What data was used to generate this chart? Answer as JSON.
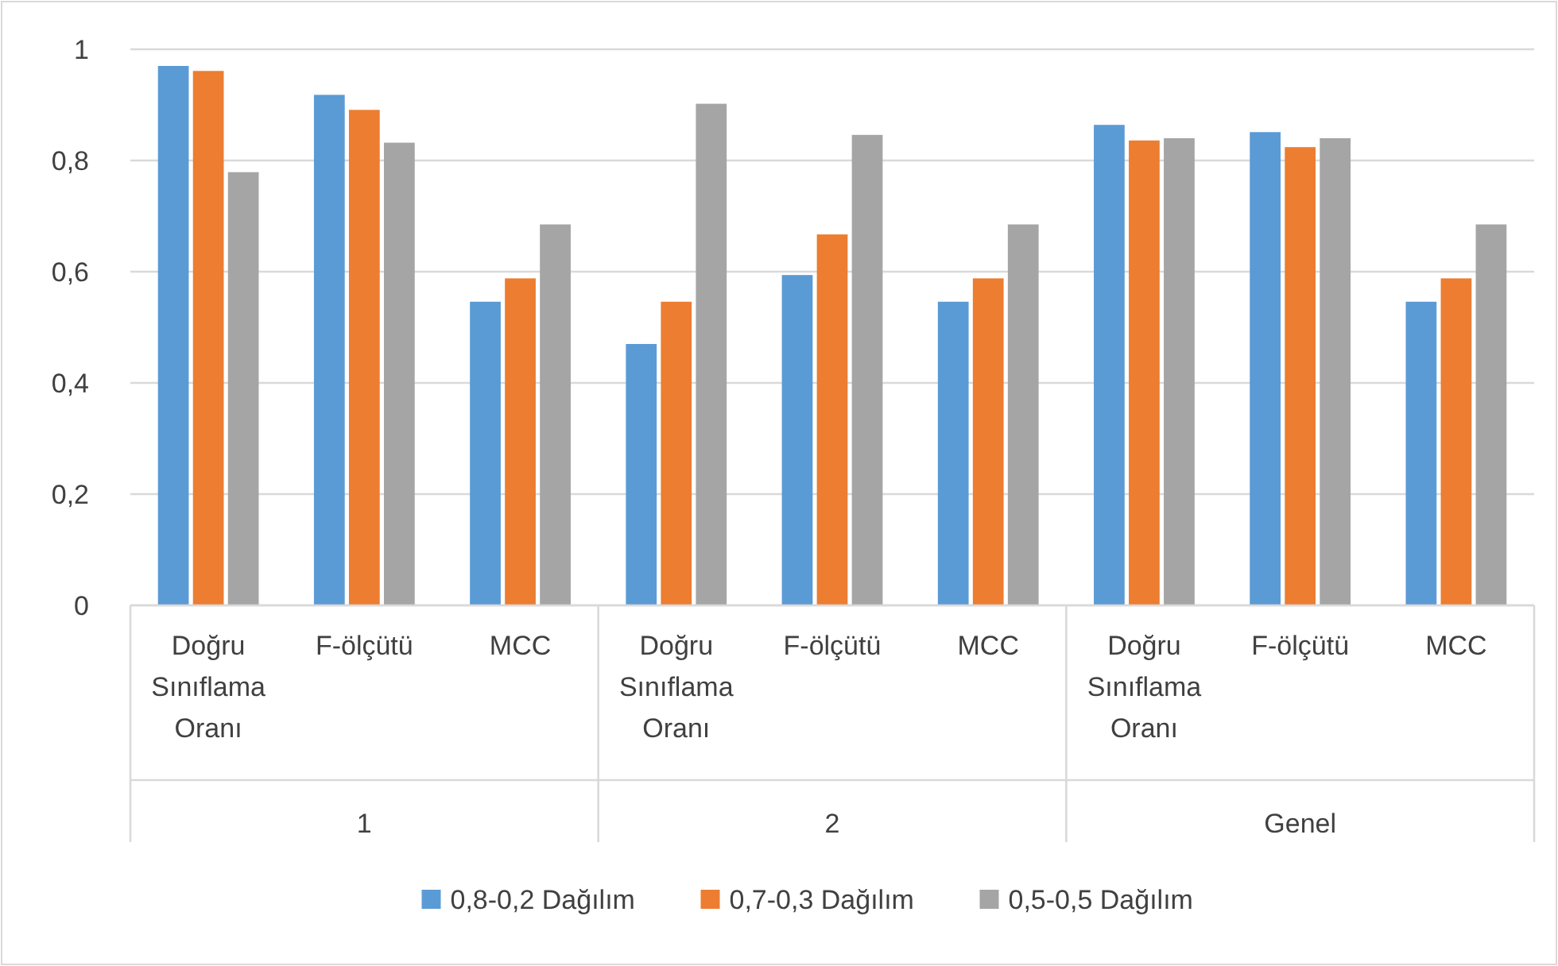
{
  "chart_data": {
    "type": "bar",
    "categories": [
      "Doğru Sınıflama Oranı",
      "F-ölçütü",
      "MCC",
      "Doğru Sınıflama Oranı",
      "F-ölçütü",
      "MCC",
      "Doğru Sınıflama Oranı",
      "F-ölçütü",
      "MCC"
    ],
    "annotations": [
      "1",
      "2",
      "Genel"
    ],
    "series": [
      {
        "name": "0,8-0,2 Dağılım",
        "color": "#5b9bd5",
        "values": [
          0.97,
          0.918,
          0.546,
          0.47,
          0.594,
          0.546,
          0.864,
          0.851,
          0.546
        ]
      },
      {
        "name": "0,7-0,3 Dağılım",
        "color": "#ed7d31",
        "values": [
          0.961,
          0.891,
          0.588,
          0.546,
          0.667,
          0.588,
          0.836,
          0.824,
          0.588
        ]
      },
      {
        "name": "0,5-0,5 Dağılım",
        "color": "#a5a5a5",
        "values": [
          0.779,
          0.832,
          0.685,
          0.902,
          0.846,
          0.685,
          0.84,
          0.84,
          0.685
        ]
      }
    ],
    "ylim": [
      0,
      1
    ],
    "yticks": [
      {
        "value": 0,
        "label": "0"
      },
      {
        "value": 0.2,
        "label": "0,2"
      },
      {
        "value": 0.4,
        "label": "0,4"
      },
      {
        "value": 0.6,
        "label": "0,6"
      },
      {
        "value": 0.8,
        "label": "0,8"
      },
      {
        "value": 1,
        "label": "1"
      }
    ],
    "grid": "y",
    "legend": "bottom"
  }
}
